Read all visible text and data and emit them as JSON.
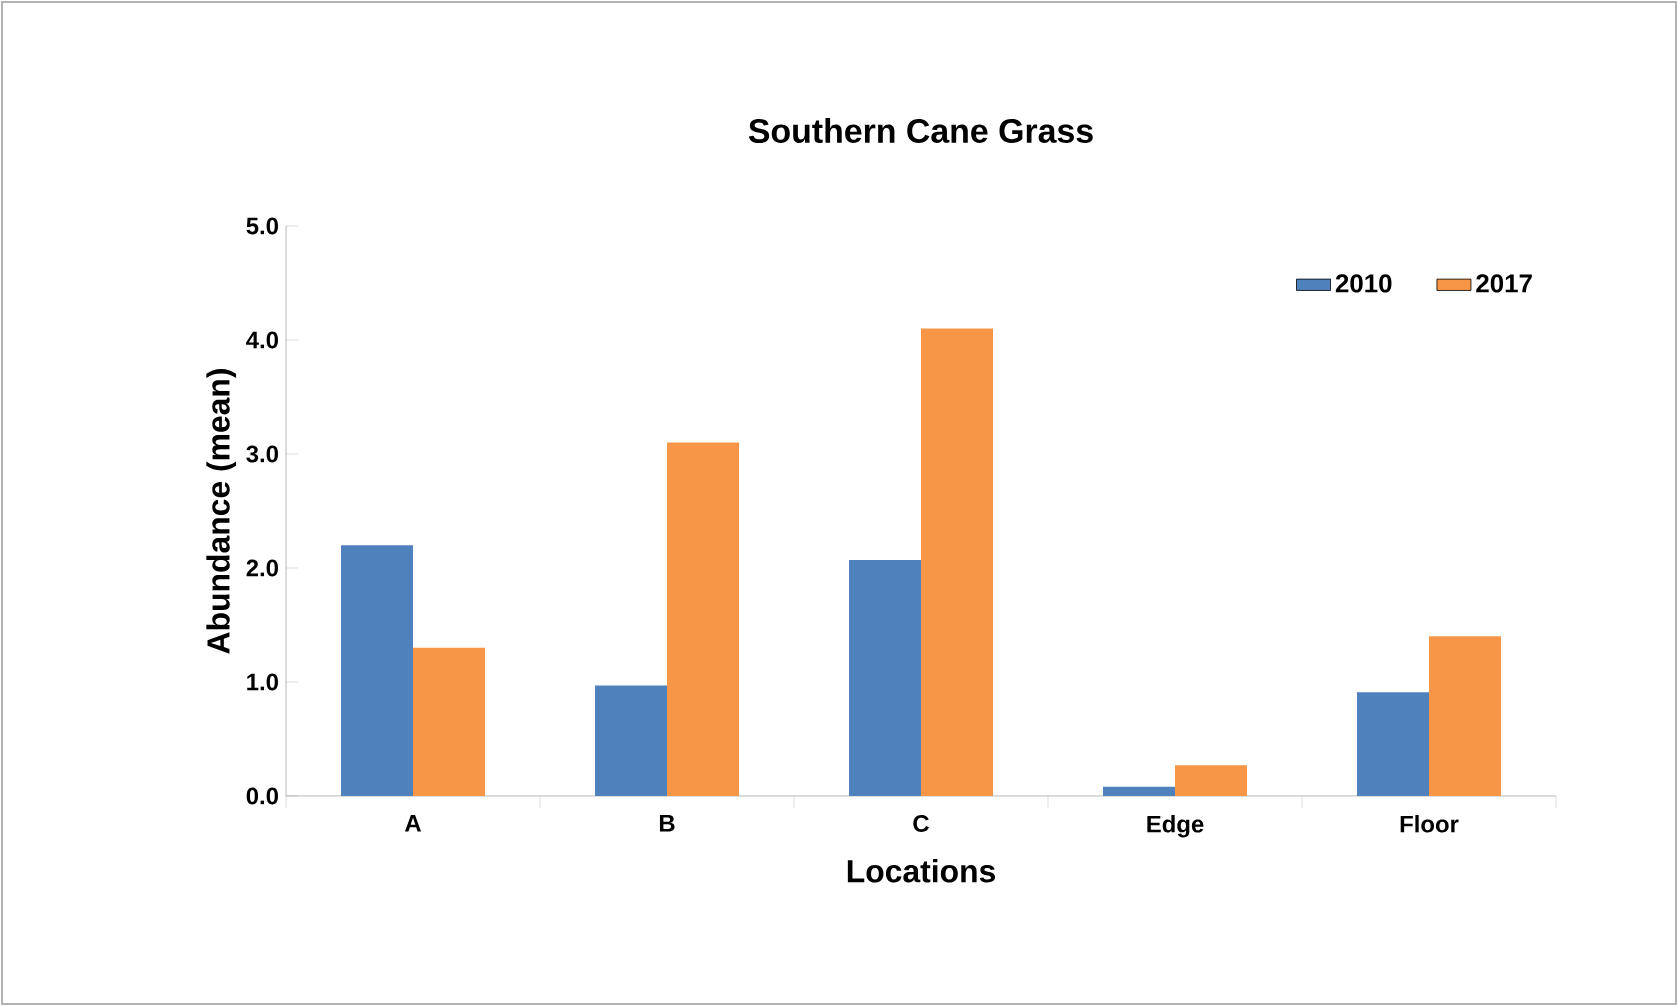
{
  "chart_data": {
    "type": "bar",
    "title": "Southern Cane Grass",
    "xlabel": "Locations",
    "ylabel": "Abundance (mean)",
    "categories": [
      "A",
      "B",
      "C",
      "Edge",
      "Floor"
    ],
    "series": [
      {
        "name": "2010",
        "color": "#4f81bd",
        "values": [
          2.2,
          0.97,
          2.07,
          0.08,
          0.91
        ]
      },
      {
        "name": "2017",
        "color": "#f79646",
        "values": [
          1.3,
          3.1,
          4.1,
          0.27,
          1.4
        ]
      }
    ],
    "ylim": [
      0,
      5
    ],
    "yticks": [
      {
        "value": 0,
        "label": "0.0"
      },
      {
        "value": 1,
        "label": "1.0"
      },
      {
        "value": 2,
        "label": "2.0"
      },
      {
        "value": 3,
        "label": "3.0"
      },
      {
        "value": 4,
        "label": "4.0"
      },
      {
        "value": 5,
        "label": "5.0"
      }
    ],
    "grid": false,
    "legend": "top right"
  }
}
